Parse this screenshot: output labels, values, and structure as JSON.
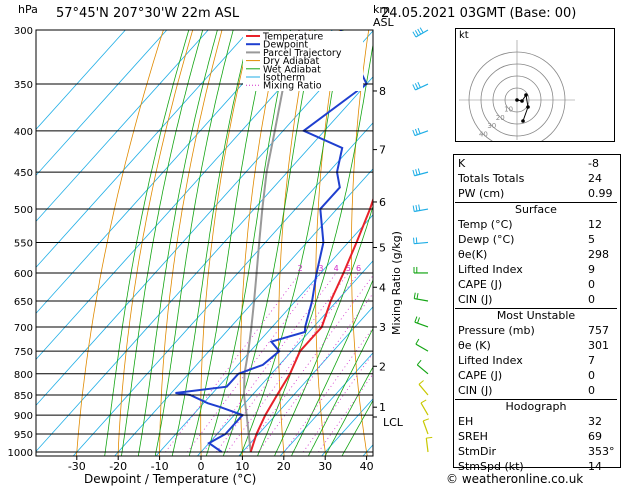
{
  "header": {
    "pressure_unit": "hPa",
    "location": "57°45'N  207°30'W  22m  ASL",
    "height_unit": "km",
    "height_ref": "ASL",
    "datetime": "24.05.2021  03GMT  (Base: 00)"
  },
  "chart_data": {
    "type": "skew-t",
    "xlabel": "Dewpoint / Temperature (°C)",
    "mixing_ratio_label": "Mixing Ratio (g/kg)",
    "x_ticks": [
      "-30",
      "-20",
      "-10",
      "0",
      "10",
      "20",
      "30",
      "40"
    ],
    "pressure_levels": [
      300,
      350,
      400,
      450,
      500,
      550,
      600,
      650,
      700,
      750,
      800,
      850,
      900,
      950,
      1000
    ],
    "height_labels": [
      "8",
      "7",
      "6",
      "5",
      "4",
      "3",
      "2",
      "1",
      "LCL"
    ],
    "mixing_ratio_labels": [
      "2",
      "3",
      "4",
      "5",
      "6",
      "8",
      "10",
      "15",
      "20",
      "25"
    ],
    "legend": [
      "Temperature",
      "Dewpoint",
      "Parcel Trajectory",
      "Dry Adiabat",
      "Wet Adiabat",
      "Isotherm",
      "Mixing Ratio"
    ],
    "colors": {
      "temperature": "#e8222a",
      "dewpoint": "#1f3fcf",
      "parcel": "#999999",
      "dry_adiabat": "#e08a00",
      "wet_adiabat": "#14a514",
      "isotherm": "#1faee6",
      "mixing_ratio": "#d12cc9"
    },
    "temperature": [
      [
        1000,
        12
      ],
      [
        950,
        9.5
      ],
      [
        900,
        7.5
      ],
      [
        850,
        6
      ],
      [
        800,
        4.5
      ],
      [
        750,
        2
      ],
      [
        700,
        2
      ],
      [
        650,
        -1.5
      ],
      [
        600,
        -4.5
      ],
      [
        550,
        -8
      ],
      [
        500,
        -12
      ],
      [
        450,
        -17
      ],
      [
        400,
        -21
      ],
      [
        350,
        -29.5
      ],
      [
        300,
        -36
      ]
    ],
    "dewpoint": [
      [
        1000,
        5
      ],
      [
        975,
        0
      ],
      [
        950,
        2
      ],
      [
        900,
        2
      ],
      [
        880,
        -5
      ],
      [
        870,
        -9
      ],
      [
        850,
        -15
      ],
      [
        845,
        -19
      ],
      [
        830,
        -8
      ],
      [
        800,
        -8
      ],
      [
        780,
        -4
      ],
      [
        750,
        -3
      ],
      [
        730,
        -7
      ],
      [
        710,
        -1
      ],
      [
        700,
        -2
      ],
      [
        650,
        -6
      ],
      [
        600,
        -11
      ],
      [
        550,
        -16
      ],
      [
        500,
        -24
      ],
      [
        470,
        -24
      ],
      [
        450,
        -28
      ],
      [
        420,
        -32
      ],
      [
        400,
        -45
      ],
      [
        350,
        -40
      ],
      [
        300,
        -58
      ]
    ],
    "parcel": [
      [
        1000,
        12
      ],
      [
        900,
        3
      ],
      [
        850,
        -2
      ],
      [
        800,
        -6.5
      ],
      [
        750,
        -10.5
      ],
      [
        700,
        -15
      ],
      [
        650,
        -20
      ],
      [
        600,
        -25.5
      ],
      [
        550,
        -31.5
      ],
      [
        500,
        -38
      ],
      [
        450,
        -45
      ],
      [
        400,
        -52
      ],
      [
        350,
        -60
      ],
      [
        300,
        -68
      ]
    ],
    "wind_barbs": [
      [
        1000,
        353,
        14
      ],
      [
        950,
        340,
        10
      ],
      [
        900,
        330,
        10
      ],
      [
        850,
        320,
        10
      ],
      [
        800,
        310,
        10
      ],
      [
        750,
        300,
        10
      ],
      [
        700,
        290,
        15
      ],
      [
        650,
        280,
        15
      ],
      [
        600,
        270,
        20
      ],
      [
        550,
        265,
        20
      ],
      [
        500,
        260,
        25
      ],
      [
        450,
        255,
        25
      ],
      [
        400,
        250,
        30
      ],
      [
        350,
        245,
        30
      ],
      [
        300,
        240,
        35
      ]
    ]
  },
  "hodograph": {
    "unit": "kt",
    "ring_labels": [
      "10",
      "20",
      "30",
      "40"
    ]
  },
  "indices": {
    "rows": [
      {
        "label": "K",
        "value": "-8"
      },
      {
        "label": "Totals Totals",
        "value": "24"
      },
      {
        "label": "PW (cm)",
        "value": "0.99"
      }
    ],
    "surface_title": "Surface",
    "surface": [
      {
        "label": "Temp (°C)",
        "value": "12"
      },
      {
        "label": "Dewp (°C)",
        "value": "5"
      },
      {
        "label": "θe(K)",
        "value": "298"
      },
      {
        "label": "Lifted Index",
        "value": "9"
      },
      {
        "label": "CAPE (J)",
        "value": "0"
      },
      {
        "label": "CIN (J)",
        "value": "0"
      }
    ],
    "unstable_title": "Most Unstable",
    "unstable": [
      {
        "label": "Pressure (mb)",
        "value": "757"
      },
      {
        "label": "θe (K)",
        "value": "301"
      },
      {
        "label": "Lifted Index",
        "value": "7"
      },
      {
        "label": "CAPE (J)",
        "value": "0"
      },
      {
        "label": "CIN (J)",
        "value": "0"
      }
    ],
    "hodograph_title": "Hodograph",
    "hodo_rows": [
      {
        "label": "EH",
        "value": "32"
      },
      {
        "label": "SREH",
        "value": "69"
      },
      {
        "label": "StmDir",
        "value": "353°"
      },
      {
        "label": "StmSpd (kt)",
        "value": "14"
      }
    ]
  },
  "copyright": "© weatheronline.co.uk"
}
